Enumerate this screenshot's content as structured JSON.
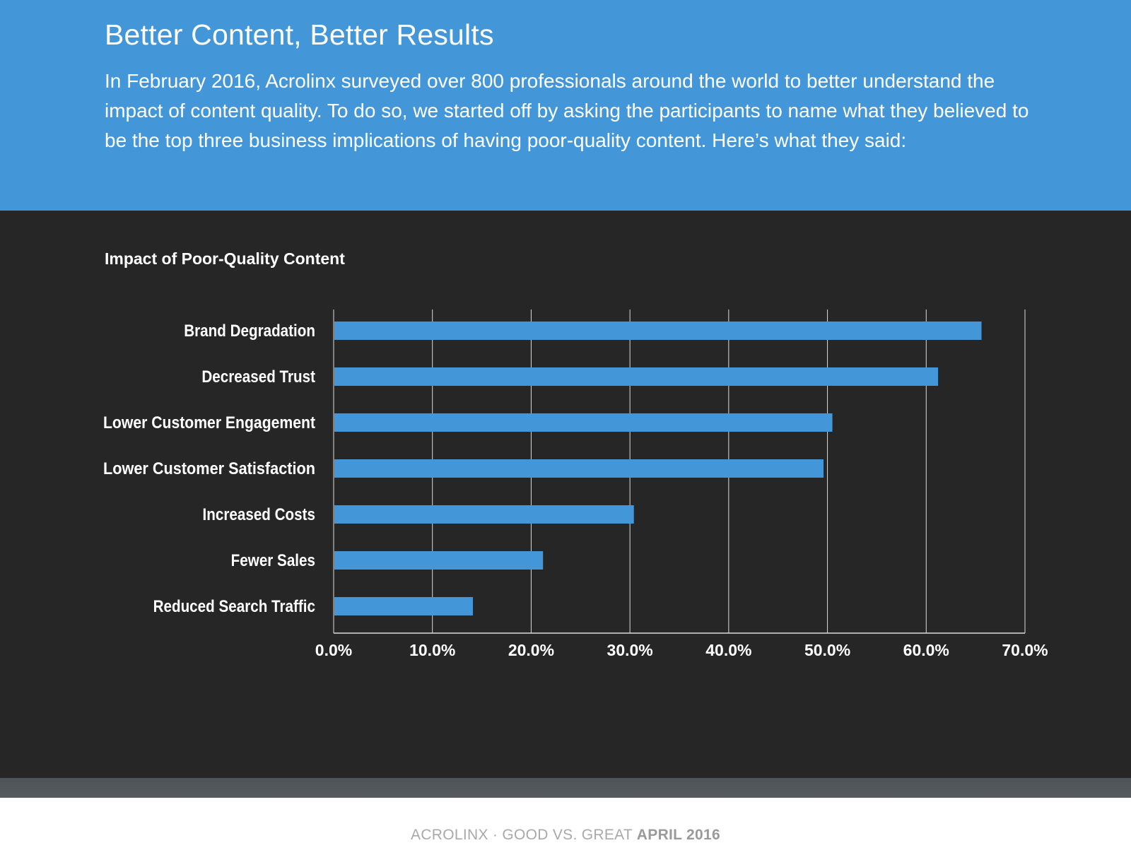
{
  "header": {
    "title": "Better Content, Better Results",
    "intro": "In February 2016, Acrolinx surveyed over 800 professionals around the world to better understand the impact of content quality. To do so, we started off by asking the participants to name what they believed to be the top three business implications of having poor-quality content. Here’s what they said:"
  },
  "colors": {
    "header_bg": "#4397d9",
    "panel_bg": "#262626",
    "bar": "#4397d9",
    "text": "#ffffff",
    "grid": "#dcdcdc"
  },
  "chart_data": {
    "type": "bar",
    "orientation": "horizontal",
    "title": "Impact of Poor-Quality Content",
    "categories": [
      "Brand Degradation",
      "Decreased Trust",
      "Lower Customer Engagement",
      "Lower Customer Satisfaction",
      "Increased Costs",
      "Fewer Sales",
      "Reduced Search Traffic"
    ],
    "values": [
      65.6,
      61.2,
      50.5,
      49.6,
      30.4,
      21.2,
      14.1
    ],
    "xlim": [
      0,
      70
    ],
    "xticks": [
      0,
      10,
      20,
      30,
      40,
      50,
      60,
      70
    ],
    "xtick_labels": [
      "0.0%",
      "10.0%",
      "20.0%",
      "30.0%",
      "40.0%",
      "50.0%",
      "60.0%",
      "70.0%"
    ],
    "grid": "vertical",
    "legend": "none"
  },
  "footer": {
    "prefix": "ACROLINX · GOOD VS. GREAT",
    "date": "APRIL 2016"
  }
}
